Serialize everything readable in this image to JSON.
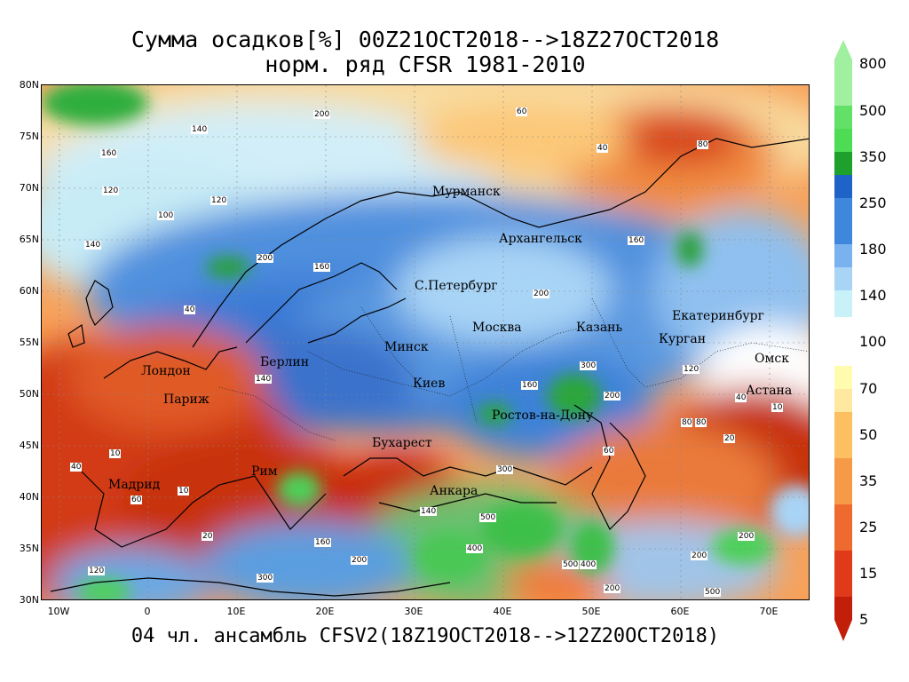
{
  "title_line1": "Сумма осадков[%] 00Z21OCT2018-->18Z27OCT2018",
  "title_line2": "норм. ряд CFSR 1981-2010",
  "footer": "04 чл. ансамбль CFSV2(18Z19OCT2018-->12Z20OCT2018)",
  "lat_labels": [
    "80N",
    "75N",
    "70N",
    "65N",
    "60N",
    "55N",
    "50N",
    "45N",
    "40N",
    "35N",
    "30N"
  ],
  "lon_labels": [
    "10W",
    "0",
    "10E",
    "20E",
    "30E",
    "40E",
    "50E",
    "60E",
    "70E"
  ],
  "cities": [
    {
      "name": "Мурманск"
    },
    {
      "name": "Архангельск"
    },
    {
      "name": "С.Петербург"
    },
    {
      "name": "Москва"
    },
    {
      "name": "Казань"
    },
    {
      "name": "Екатеринбург"
    },
    {
      "name": "Курган"
    },
    {
      "name": "Омск"
    },
    {
      "name": "Астана"
    },
    {
      "name": "Берлин"
    },
    {
      "name": "Минск"
    },
    {
      "name": "Лондон"
    },
    {
      "name": "Париж"
    },
    {
      "name": "Киев"
    },
    {
      "name": "Ростов-на-Дону"
    },
    {
      "name": "Бухарест"
    },
    {
      "name": "Рим"
    },
    {
      "name": "Мадрид"
    },
    {
      "name": "Анкара"
    }
  ],
  "contour_values": [
    "200",
    "60",
    "40",
    "80",
    "160",
    "140",
    "120",
    "100",
    "140",
    "200",
    "160",
    "120",
    "140",
    "200",
    "160",
    "300",
    "200",
    "160",
    "400",
    "500",
    "300",
    "500",
    "400",
    "200",
    "10",
    "20",
    "40",
    "60",
    "10",
    "20",
    "80",
    "10",
    "200",
    "140",
    "160",
    "120",
    "300",
    "40",
    "20",
    "120",
    "40",
    "200",
    "80",
    "60",
    "500",
    "200"
  ],
  "legend": {
    "labels": [
      "800",
      "500",
      "350",
      "250",
      "180",
      "140",
      "100",
      "70",
      "50",
      "35",
      "25",
      "15",
      "5"
    ],
    "colors": [
      "#a0f0a0",
      "#4edc54",
      "#1ea02c",
      "#1f63c8",
      "#3f86dd",
      "#79b2ee",
      "#a8d4f6",
      "#c8f2f8",
      "#ffffff",
      "#ffe9a0",
      "#fdc060",
      "#f79a48",
      "#ef6a2e",
      "#e03a1a",
      "#c21f0a"
    ]
  }
}
